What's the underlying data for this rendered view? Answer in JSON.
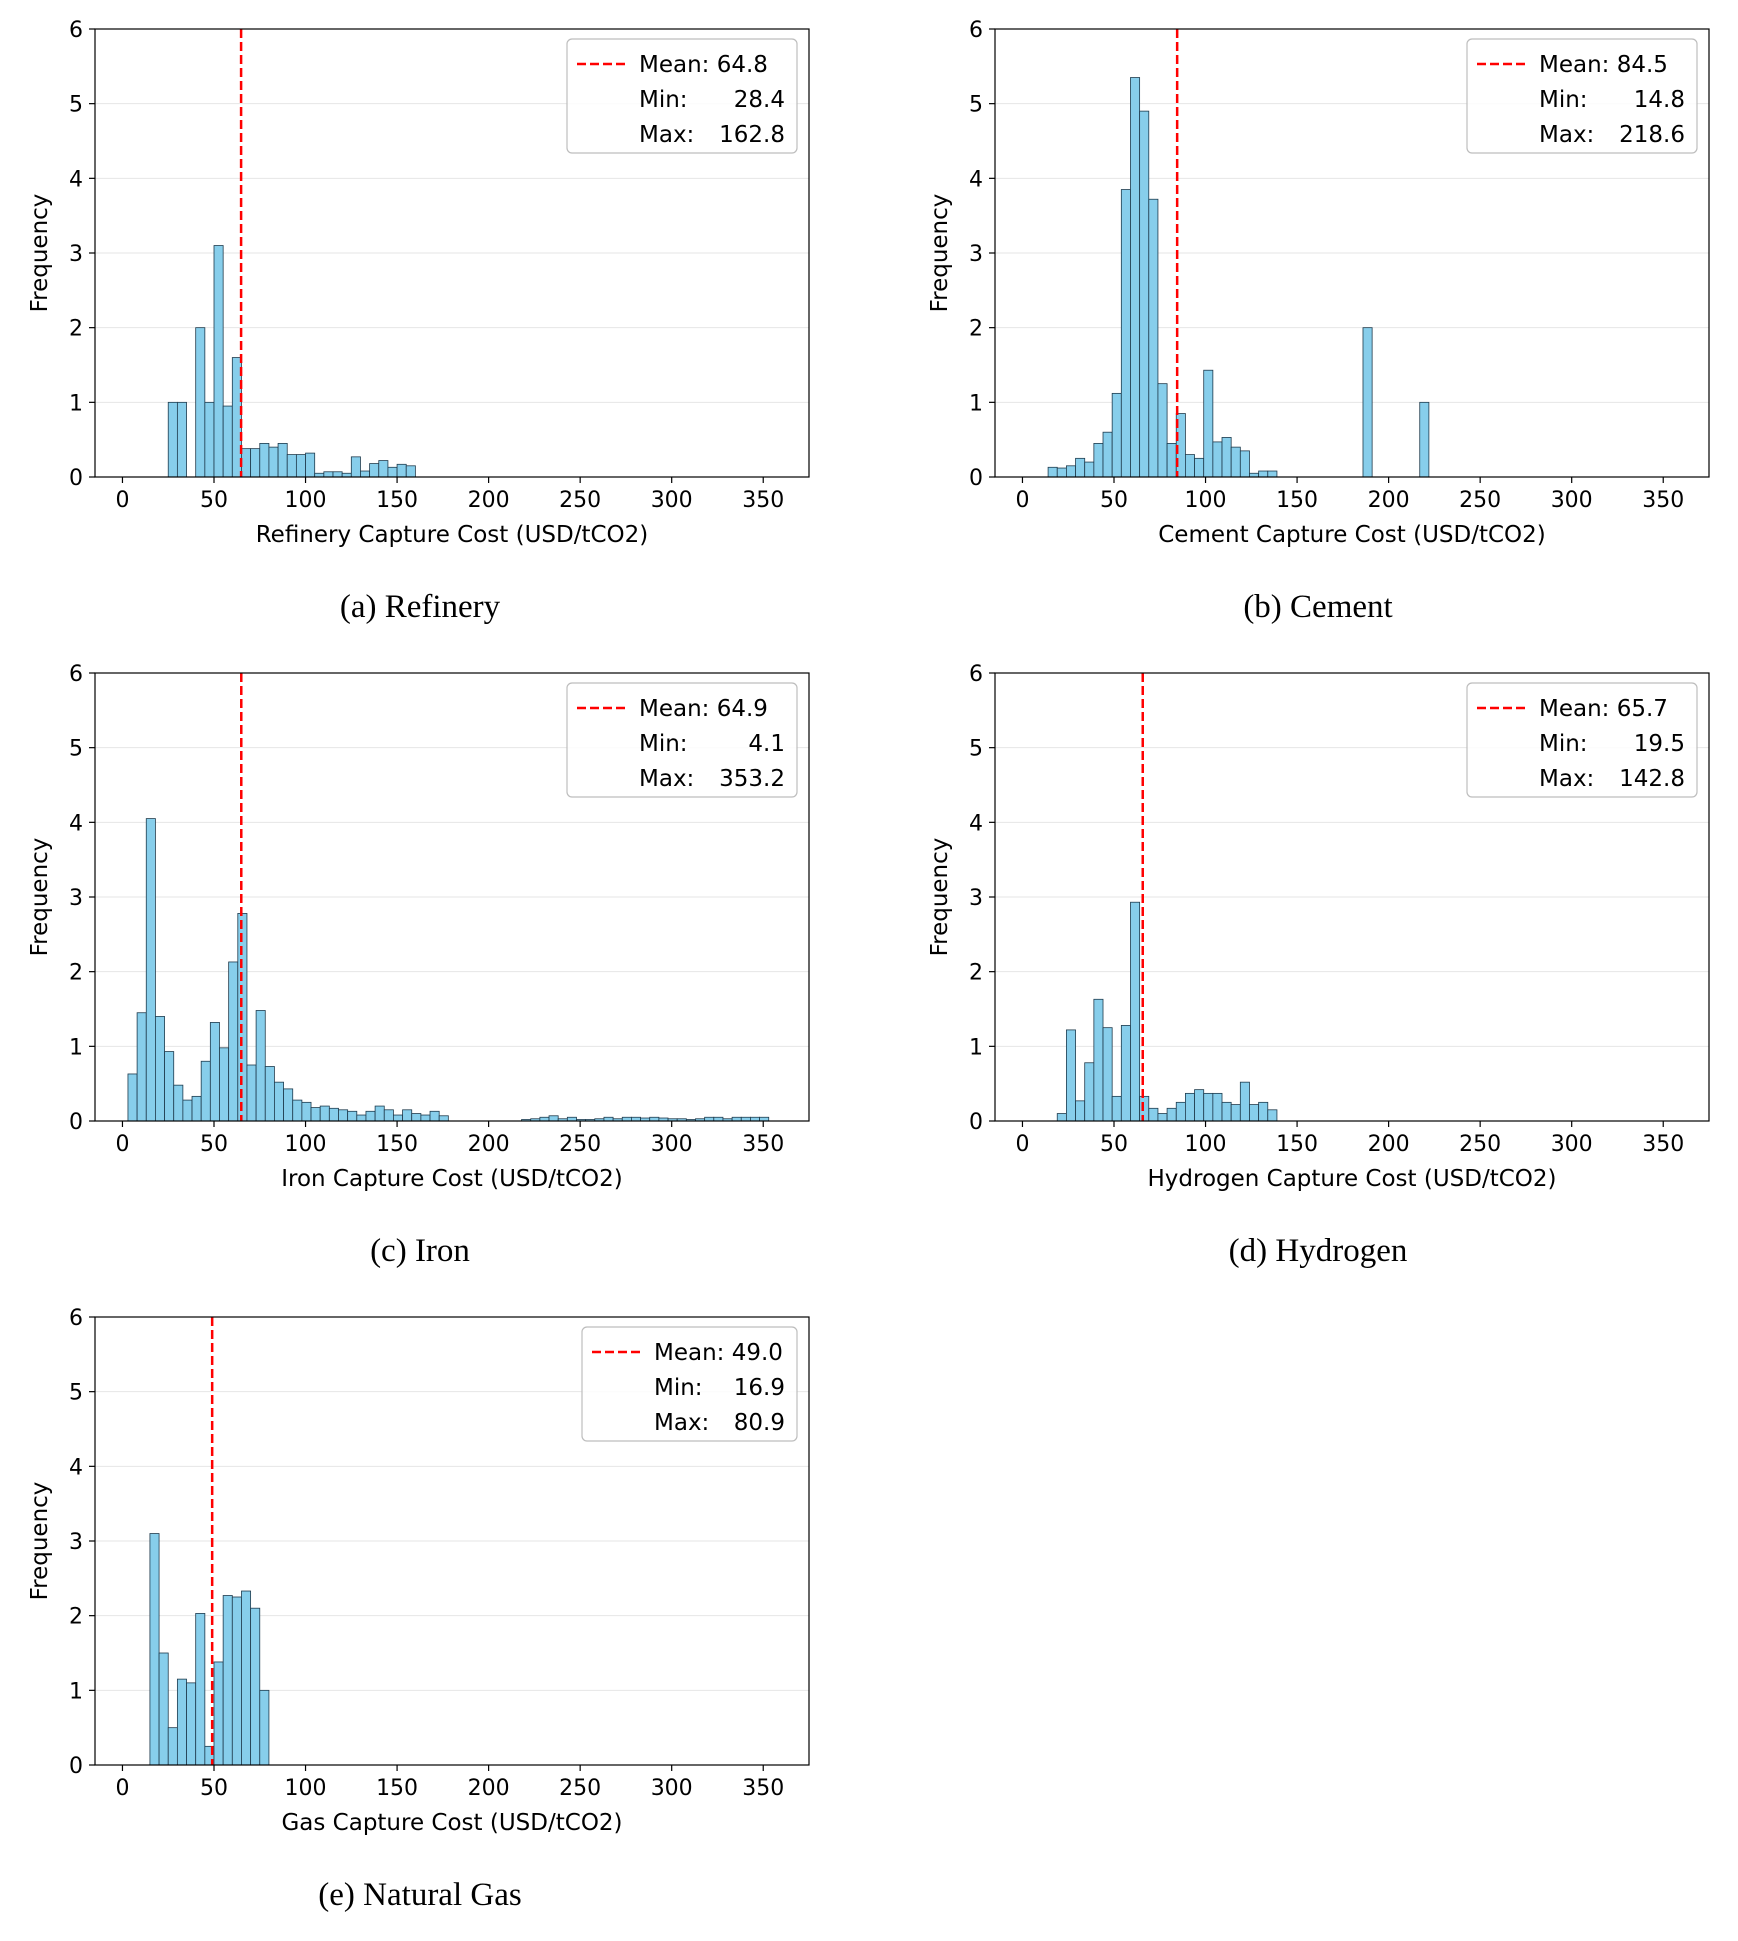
{
  "colors": {
    "bar_fill": "#87ceeb",
    "bar_edge": "#1f3b4d",
    "mean_line": "#ff0000",
    "grid": "#e6e6e6"
  },
  "chart_data": [
    {
      "type": "bar",
      "id": "refinery",
      "caption": "(a) Refinery",
      "xlabel": "Refinery Capture Cost (USD/tCO2)",
      "ylabel": "Frequency",
      "xlim": [
        -15,
        375
      ],
      "ylim": [
        0,
        6
      ],
      "xticks": [
        0,
        50,
        100,
        150,
        200,
        250,
        300,
        350
      ],
      "yticks": [
        0,
        1,
        2,
        3,
        4,
        5,
        6
      ],
      "bin_width": 5,
      "bins": [
        [
          25,
          1.0
        ],
        [
          30,
          1.0
        ],
        [
          40,
          2.0
        ],
        [
          45,
          1.0
        ],
        [
          50,
          3.1
        ],
        [
          55,
          0.95
        ],
        [
          60,
          1.6
        ],
        [
          65,
          0.38
        ],
        [
          70,
          0.38
        ],
        [
          75,
          0.45
        ],
        [
          80,
          0.4
        ],
        [
          85,
          0.45
        ],
        [
          90,
          0.3
        ],
        [
          95,
          0.3
        ],
        [
          100,
          0.32
        ],
        [
          105,
          0.05
        ],
        [
          110,
          0.07
        ],
        [
          115,
          0.07
        ],
        [
          120,
          0.05
        ],
        [
          125,
          0.27
        ],
        [
          130,
          0.08
        ],
        [
          135,
          0.18
        ],
        [
          140,
          0.22
        ],
        [
          145,
          0.13
        ],
        [
          150,
          0.17
        ],
        [
          155,
          0.15
        ]
      ],
      "mean": 64.8,
      "legend": {
        "mean": "Mean: 64.8",
        "min_label": "Min:",
        "min_value": "28.4",
        "max_label": "Max:",
        "max_value": "162.8"
      }
    },
    {
      "type": "bar",
      "id": "cement",
      "caption": "(b) Cement",
      "xlabel": "Cement Capture Cost (USD/tCO2)",
      "ylabel": "Frequency",
      "xlim": [
        -15,
        375
      ],
      "ylim": [
        0,
        6
      ],
      "xticks": [
        0,
        50,
        100,
        150,
        200,
        250,
        300,
        350
      ],
      "yticks": [
        0,
        1,
        2,
        3,
        4,
        5,
        6
      ],
      "bin_width": 5,
      "bins": [
        [
          14,
          0.13
        ],
        [
          19,
          0.12
        ],
        [
          24,
          0.15
        ],
        [
          29,
          0.25
        ],
        [
          34,
          0.2
        ],
        [
          39,
          0.45
        ],
        [
          44,
          0.6
        ],
        [
          49,
          1.12
        ],
        [
          54,
          3.85
        ],
        [
          59,
          5.35
        ],
        [
          64,
          4.9
        ],
        [
          69,
          3.72
        ],
        [
          74,
          1.25
        ],
        [
          79,
          0.45
        ],
        [
          84,
          0.85
        ],
        [
          89,
          0.3
        ],
        [
          94,
          0.25
        ],
        [
          99,
          1.43
        ],
        [
          104,
          0.47
        ],
        [
          109,
          0.53
        ],
        [
          114,
          0.4
        ],
        [
          119,
          0.35
        ],
        [
          124,
          0.05
        ],
        [
          129,
          0.08
        ],
        [
          134,
          0.08
        ],
        [
          186,
          2.0
        ],
        [
          217,
          1.0
        ]
      ],
      "mean": 84.5,
      "legend": {
        "mean": "Mean: 84.5",
        "min_label": "Min:",
        "min_value": "14.8",
        "max_label": "Max:",
        "max_value": "218.6"
      }
    },
    {
      "type": "bar",
      "id": "iron",
      "caption": "(c) Iron",
      "xlabel": "Iron Capture Cost (USD/tCO2)",
      "ylabel": "Frequency",
      "xlim": [
        -15,
        375
      ],
      "ylim": [
        0,
        6
      ],
      "xticks": [
        0,
        50,
        100,
        150,
        200,
        250,
        300,
        350
      ],
      "yticks": [
        0,
        1,
        2,
        3,
        4,
        5,
        6
      ],
      "bin_width": 5,
      "bins": [
        [
          3,
          0.63
        ],
        [
          8,
          1.45
        ],
        [
          13,
          4.05
        ],
        [
          18,
          1.4
        ],
        [
          23,
          0.93
        ],
        [
          28,
          0.48
        ],
        [
          33,
          0.28
        ],
        [
          38,
          0.33
        ],
        [
          43,
          0.8
        ],
        [
          48,
          1.32
        ],
        [
          53,
          0.98
        ],
        [
          58,
          2.13
        ],
        [
          63,
          2.78
        ],
        [
          68,
          0.75
        ],
        [
          73,
          1.48
        ],
        [
          78,
          0.73
        ],
        [
          83,
          0.52
        ],
        [
          88,
          0.43
        ],
        [
          93,
          0.28
        ],
        [
          98,
          0.25
        ],
        [
          103,
          0.18
        ],
        [
          108,
          0.2
        ],
        [
          113,
          0.17
        ],
        [
          118,
          0.15
        ],
        [
          123,
          0.13
        ],
        [
          128,
          0.08
        ],
        [
          133,
          0.13
        ],
        [
          138,
          0.2
        ],
        [
          143,
          0.15
        ],
        [
          148,
          0.08
        ],
        [
          153,
          0.15
        ],
        [
          158,
          0.1
        ],
        [
          163,
          0.08
        ],
        [
          168,
          0.13
        ],
        [
          173,
          0.07
        ],
        [
          218,
          0.02
        ],
        [
          223,
          0.03
        ],
        [
          228,
          0.05
        ],
        [
          233,
          0.07
        ],
        [
          238,
          0.03
        ],
        [
          243,
          0.05
        ],
        [
          248,
          0.02
        ],
        [
          253,
          0.02
        ],
        [
          258,
          0.03
        ],
        [
          263,
          0.05
        ],
        [
          268,
          0.03
        ],
        [
          273,
          0.05
        ],
        [
          278,
          0.05
        ],
        [
          283,
          0.04
        ],
        [
          288,
          0.05
        ],
        [
          293,
          0.04
        ],
        [
          298,
          0.03
        ],
        [
          303,
          0.03
        ],
        [
          308,
          0.02
        ],
        [
          313,
          0.03
        ],
        [
          318,
          0.05
        ],
        [
          323,
          0.05
        ],
        [
          328,
          0.03
        ],
        [
          333,
          0.05
        ],
        [
          338,
          0.05
        ],
        [
          343,
          0.05
        ],
        [
          348,
          0.05
        ]
      ],
      "mean": 64.9,
      "legend": {
        "mean": "Mean: 64.9",
        "min_label": "Min:",
        "min_value": "4.1",
        "max_label": "Max:",
        "max_value": "353.2"
      }
    },
    {
      "type": "bar",
      "id": "hydrogen",
      "caption": "(d) Hydrogen",
      "xlabel": "Hydrogen Capture Cost (USD/tCO2)",
      "ylabel": "Frequency",
      "xlim": [
        -15,
        375
      ],
      "ylim": [
        0,
        6
      ],
      "xticks": [
        0,
        50,
        100,
        150,
        200,
        250,
        300,
        350
      ],
      "yticks": [
        0,
        1,
        2,
        3,
        4,
        5,
        6
      ],
      "bin_width": 5,
      "bins": [
        [
          19,
          0.1
        ],
        [
          24,
          1.22
        ],
        [
          29,
          0.27
        ],
        [
          34,
          0.78
        ],
        [
          39,
          1.63
        ],
        [
          44,
          1.25
        ],
        [
          49,
          0.33
        ],
        [
          54,
          1.28
        ],
        [
          59,
          2.93
        ],
        [
          64,
          0.33
        ],
        [
          69,
          0.17
        ],
        [
          74,
          0.1
        ],
        [
          79,
          0.17
        ],
        [
          84,
          0.25
        ],
        [
          89,
          0.37
        ],
        [
          94,
          0.42
        ],
        [
          99,
          0.37
        ],
        [
          104,
          0.37
        ],
        [
          109,
          0.25
        ],
        [
          114,
          0.22
        ],
        [
          119,
          0.52
        ],
        [
          124,
          0.22
        ],
        [
          129,
          0.25
        ],
        [
          134,
          0.15
        ]
      ],
      "mean": 65.7,
      "legend": {
        "mean": "Mean: 65.7",
        "min_label": "Min:",
        "min_value": "19.5",
        "max_label": "Max:",
        "max_value": "142.8"
      }
    },
    {
      "type": "bar",
      "id": "gas",
      "caption": "(e) Natural Gas",
      "xlabel": "Gas Capture Cost (USD/tCO2)",
      "ylabel": "Frequency",
      "xlim": [
        -15,
        375
      ],
      "ylim": [
        0,
        6
      ],
      "xticks": [
        0,
        50,
        100,
        150,
        200,
        250,
        300,
        350
      ],
      "yticks": [
        0,
        1,
        2,
        3,
        4,
        5,
        6
      ],
      "bin_width": 5,
      "bins": [
        [
          15,
          3.1
        ],
        [
          20,
          1.5
        ],
        [
          25,
          0.5
        ],
        [
          30,
          1.15
        ],
        [
          35,
          1.1
        ],
        [
          40,
          2.03
        ],
        [
          45,
          0.25
        ],
        [
          50,
          1.38
        ],
        [
          55,
          2.27
        ],
        [
          60,
          2.25
        ],
        [
          65,
          2.33
        ],
        [
          70,
          2.1
        ],
        [
          75,
          1.0
        ]
      ],
      "mean": 49.0,
      "legend": {
        "mean": "Mean: 49.0",
        "min_label": "Min:",
        "min_value": "16.9",
        "max_label": "Max:",
        "max_value": "80.9"
      }
    }
  ]
}
